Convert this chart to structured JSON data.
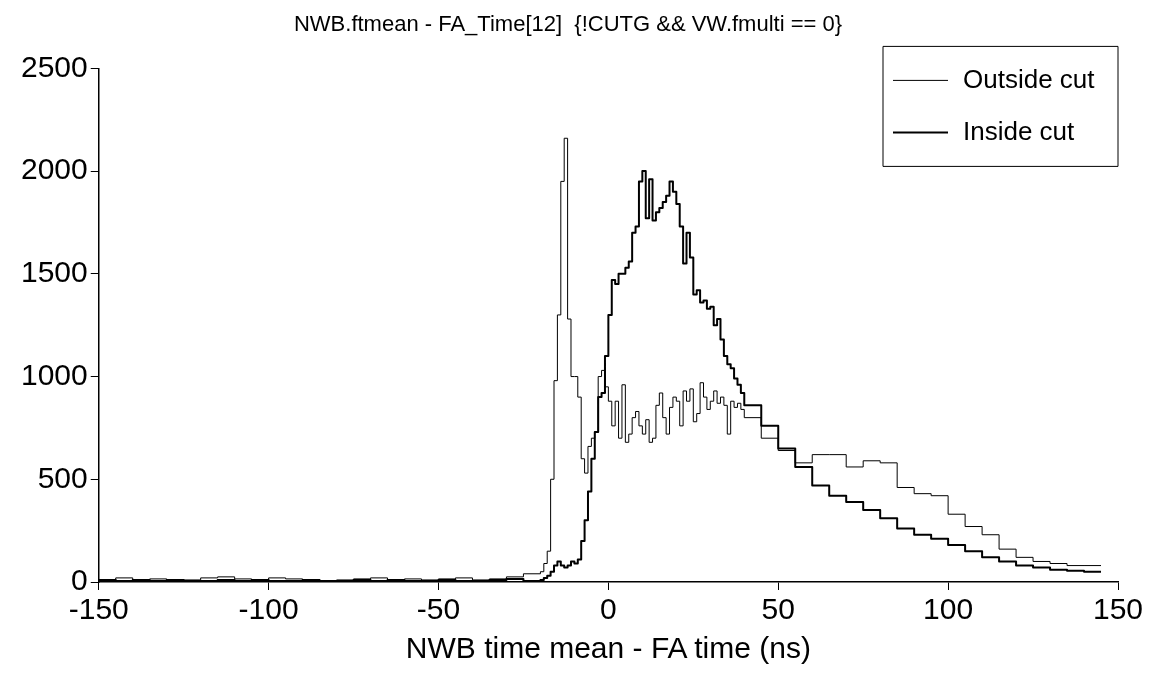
{
  "chart_data": {
    "type": "step",
    "title": "NWB.ftmean - FA_Time[12]  {!CUTG && VW.fmulti == 0}",
    "xlabel": "NWB time mean - FA time (ns)",
    "x": [
      -150,
      -145,
      -140,
      -135,
      -130,
      -125,
      -120,
      -115,
      -110,
      -105,
      -100,
      -95,
      -90,
      -85,
      -80,
      -75,
      -70,
      -65,
      -60,
      -55,
      -50,
      -45,
      -40,
      -35,
      -30,
      -25,
      -20,
      -19,
      -18,
      -17,
      -16,
      -15,
      -14,
      -13,
      -12,
      -11,
      -10,
      -9,
      -8,
      -7,
      -6,
      -5,
      -4,
      -3,
      -2,
      -1,
      0,
      1,
      2,
      3,
      4,
      5,
      6,
      7,
      8,
      9,
      10,
      11,
      12,
      13,
      14,
      15,
      16,
      17,
      18,
      19,
      20,
      21,
      22,
      23,
      24,
      25,
      26,
      27,
      28,
      29,
      30,
      31,
      32,
      33,
      34,
      35,
      36,
      37,
      38,
      39,
      40,
      45,
      50,
      55,
      60,
      65,
      70,
      75,
      80,
      85,
      90,
      95,
      100,
      105,
      110,
      115,
      120,
      125,
      130,
      135,
      140,
      145
    ],
    "series": [
      {
        "name": "Outside cut",
        "color": "#000000",
        "values": [
          15,
          10,
          20,
          10,
          15,
          5,
          10,
          20,
          25,
          15,
          10,
          20,
          15,
          10,
          5,
          10,
          15,
          20,
          10,
          15,
          10,
          15,
          20,
          10,
          15,
          25,
          40,
          50,
          90,
          150,
          500,
          980,
          1300,
          1950,
          2160,
          1280,
          1000,
          1000,
          900,
          600,
          530,
          660,
          700,
          730,
          1000,
          1030,
          950,
          880,
          760,
          880,
          700,
          960,
          680,
          720,
          800,
          830,
          760,
          720,
          790,
          680,
          700,
          860,
          920,
          800,
          720,
          850,
          900,
          880,
          760,
          930,
          880,
          940,
          780,
          820,
          970,
          900,
          840,
          880,
          930,
          870,
          900,
          860,
          720,
          880,
          850,
          870,
          840,
          800,
          700,
          640,
          580,
          620,
          620,
          560,
          590,
          580,
          460,
          430,
          420,
          330,
          270,
          230,
          160,
          120,
          100,
          90,
          80,
          80
        ]
      },
      {
        "name": "Inside cut",
        "color": "#000000",
        "values": [
          5,
          10,
          5,
          10,
          5,
          10,
          5,
          5,
          10,
          5,
          10,
          5,
          5,
          10,
          5,
          5,
          10,
          5,
          10,
          5,
          5,
          10,
          5,
          5,
          10,
          15,
          5,
          10,
          20,
          30,
          50,
          80,
          100,
          80,
          70,
          80,
          100,
          90,
          110,
          200,
          300,
          440,
          600,
          730,
          900,
          920,
          1100,
          1300,
          1470,
          1450,
          1500,
          1500,
          1530,
          1560,
          1700,
          1730,
          1950,
          2000,
          1770,
          1960,
          1760,
          1800,
          1820,
          1850,
          1880,
          1950,
          1900,
          1840,
          1730,
          1550,
          1700,
          1580,
          1400,
          1420,
          1360,
          1370,
          1330,
          1340,
          1250,
          1280,
          1180,
          1100,
          1060,
          1040,
          990,
          960,
          920,
          860,
          760,
          650,
          560,
          470,
          420,
          390,
          350,
          310,
          260,
          230,
          210,
          180,
          150,
          120,
          100,
          80,
          70,
          60,
          55,
          50
        ]
      }
    ],
    "xlim": [
      -150,
      150
    ],
    "xticks": [
      -150,
      -100,
      -50,
      0,
      50,
      100,
      150
    ],
    "ylim": [
      0,
      2500
    ],
    "yticks": [
      0,
      500,
      1000,
      1500,
      2000,
      2500
    ],
    "grid": false,
    "legend": "top right"
  }
}
